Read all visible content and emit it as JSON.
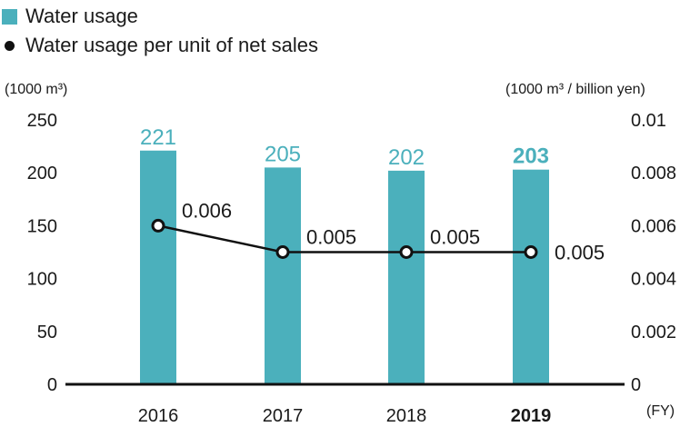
{
  "chart_data": {
    "type": "bar",
    "categories": [
      "2016",
      "2017",
      "2018",
      "2019"
    ],
    "series": [
      {
        "name": "Water usage",
        "kind": "bar",
        "axis": "left",
        "values": [
          221,
          205,
          202,
          203
        ],
        "color": "#4bb0bc"
      },
      {
        "name": "Water usage per unit of net sales",
        "kind": "line",
        "axis": "right",
        "values": [
          0.006,
          0.005,
          0.005,
          0.005
        ],
        "labels": [
          "0.006",
          "0.005",
          "0.005",
          "0.005"
        ],
        "color": "#111111"
      }
    ],
    "left_axis": {
      "unit": "(1000 m³)",
      "ylim": [
        0,
        250
      ],
      "ticks": [
        "0",
        "50",
        "100",
        "150",
        "200",
        "250"
      ]
    },
    "right_axis": {
      "unit": "(1000 m³ / billion yen)",
      "ylim": [
        0,
        0.01
      ],
      "ticks": [
        "0",
        "0.002",
        "0.004",
        "0.006",
        "0.008",
        "0.01"
      ]
    },
    "x_axis_unit": "(FY)",
    "bold_category": "2019",
    "legend_position": "top-left",
    "grid": false
  }
}
